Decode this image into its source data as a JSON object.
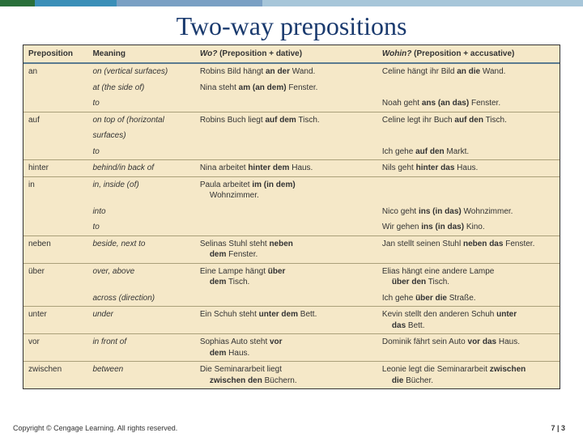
{
  "title": "Two-way prepositions",
  "copyright": "Copyright © Cengage Learning. All rights reserved.",
  "page": "7 | 3",
  "colors": {
    "table_bg": "#f5e8c8",
    "header_rule": "#5a7a90",
    "row_rule": "#aaa07a",
    "title_color": "#1a3a6e"
  },
  "header": {
    "c1": "Preposition",
    "c2": "Meaning",
    "c3_ital": "Wo?",
    "c3_rest": " (Preposition + dative)",
    "c4_ital": "Wohin?",
    "c4_rest": " (Preposition + accusative)"
  },
  "rows": [
    {
      "prep": "an",
      "mean": "on (vertical surfaces)",
      "wo": "Robins Bild hängt <b>an der</b> Wand.",
      "wohin": "Celine hängt ihr Bild <b>an die</b> Wand."
    },
    {
      "prep": "",
      "mean": "at (the side of)",
      "wo": "Nina steht <b>am (an dem)</b> Fenster.",
      "wohin": ""
    },
    {
      "prep": "",
      "mean": "to",
      "wo": "",
      "wohin": "Noah geht <b>ans (an das)</b> Fenster.",
      "sep": true
    },
    {
      "prep": "auf",
      "mean": "on top of (horizontal",
      "wo": "Robins Buch liegt <b>auf dem</b> Tisch.",
      "wohin": "Celine legt ihr Buch <b>auf den</b> Tisch."
    },
    {
      "prep": "",
      "mean": "surfaces)",
      "wo": "",
      "wohin": ""
    },
    {
      "prep": "",
      "mean": "to",
      "wo": "",
      "wohin": "Ich gehe <b>auf den</b> Markt.",
      "sep": true
    },
    {
      "prep": "hinter",
      "mean": "behind/in back of",
      "wo": "Nina arbeitet <b>hinter dem</b> Haus.",
      "wohin": "Nils geht <b>hinter das</b> Haus.",
      "sep": true
    },
    {
      "prep": "in",
      "mean": "in, inside (of)",
      "wo": "Paula arbeitet <b>im (in dem)</b><br><span class='sub'>Wohnzimmer.</span>",
      "wohin": ""
    },
    {
      "prep": "",
      "mean": "into",
      "wo": "",
      "wohin": "Nico geht <b>ins (in das)</b> Wohnzimmer."
    },
    {
      "prep": "",
      "mean": "to",
      "wo": "",
      "wohin": "Wir gehen <b>ins (in das)</b> Kino.",
      "sep": true
    },
    {
      "prep": "neben",
      "mean": "beside, next to",
      "wo": "Selinas Stuhl steht <b>neben</b><br><span class='sub'><b>dem</b> Fenster.</span>",
      "wohin": "Jan stellt seinen Stuhl <b>neben das</b> Fenster.",
      "sep": true
    },
    {
      "prep": "über",
      "mean": "over, above",
      "wo": "Eine Lampe hängt <b>über</b><br><span class='sub'><b>dem</b> Tisch.</span>",
      "wohin": "Elias hängt eine andere Lampe<br><span class='sub'><b>über den</b> Tisch.</span>"
    },
    {
      "prep": "",
      "mean": "across (direction)",
      "wo": "",
      "wohin": "Ich gehe <b>über die</b> Straße.",
      "sep": true
    },
    {
      "prep": "unter",
      "mean": "under",
      "wo": "Ein Schuh steht <b>unter dem</b> Bett.",
      "wohin": "Kevin stellt den anderen Schuh <b>unter</b><br><span class='sub'><b>das</b> Bett.</span>",
      "sep": true
    },
    {
      "prep": "vor",
      "mean": "in front of",
      "wo": "Sophias Auto steht <b>vor</b><br><span class='sub'><b>dem</b> Haus.</span>",
      "wohin": "Dominik fährt sein Auto <b>vor das</b> Haus.",
      "sep": true
    },
    {
      "prep": "zwischen",
      "mean": "between",
      "wo": "Die Seminararbeit liegt<br><span class='sub'><b>zwischen den</b> Büchern.</span>",
      "wohin": "Leonie legt die Seminararbeit <b>zwischen</b><br><span class='sub'><b>die</b> Bücher.</span>"
    }
  ]
}
